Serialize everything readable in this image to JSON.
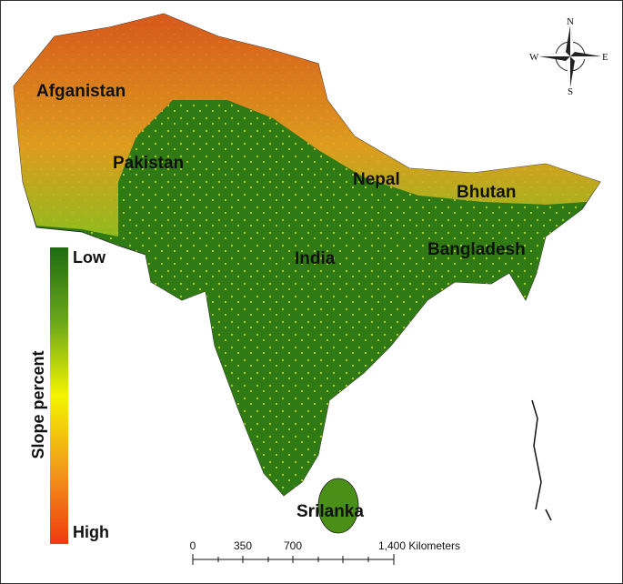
{
  "countries": [
    "Afganistan",
    "Pakistan",
    "Nepal",
    "Bhutan",
    "India",
    "Bangladesh",
    "Srilanka"
  ],
  "legend": {
    "title": "Slope percent",
    "low": "Low",
    "high": "High"
  },
  "compass": {
    "north": "N",
    "south": "S",
    "east": "E",
    "west": "W"
  },
  "scale_bar": {
    "labels": [
      "0",
      "350",
      "700",
      "1,400 Kilometers"
    ]
  }
}
